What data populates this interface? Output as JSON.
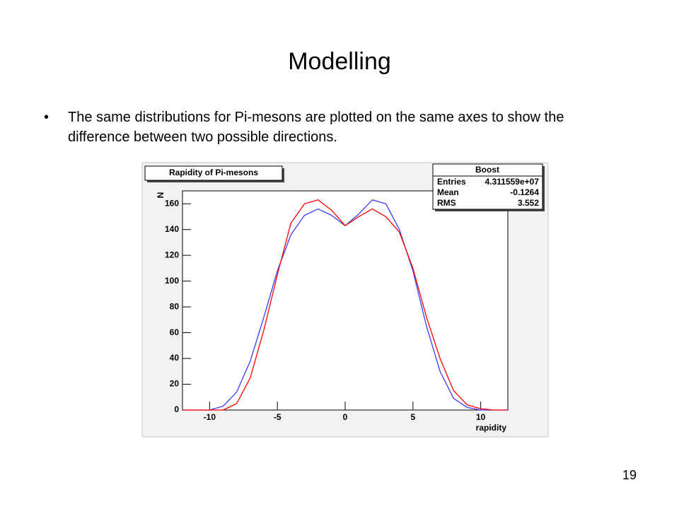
{
  "slide": {
    "title": "Modelling",
    "bullet": "The same distributions for Pi-mesons are plotted on the same axes to show the difference between two possible directions.",
    "page_number": "19"
  },
  "chart_data": {
    "type": "line",
    "title": "Rapidity of Pi-mesons",
    "xlabel": "rapidity",
    "ylabel": "N",
    "x": [
      -12,
      -11,
      -10,
      -9,
      -8,
      -7,
      -6,
      -5,
      -4,
      -3,
      -2,
      -1,
      0,
      1,
      2,
      3,
      4,
      5,
      6,
      7,
      8,
      9,
      10,
      11,
      12
    ],
    "series": [
      {
        "color": "#3b3bff",
        "values": [
          0,
          0,
          0,
          3,
          14,
          38,
          72,
          108,
          136,
          151,
          156,
          151,
          143,
          152,
          163,
          160,
          140,
          108,
          65,
          30,
          9,
          2,
          0,
          0,
          0
        ]
      },
      {
        "color": "#ff0000",
        "values": [
          0,
          0,
          0,
          0,
          5,
          25,
          62,
          105,
          145,
          160,
          163,
          155,
          143,
          150,
          156,
          150,
          138,
          110,
          72,
          40,
          15,
          4,
          1,
          0,
          0
        ]
      }
    ],
    "xlim": [
      -12,
      12
    ],
    "ylim": [
      0,
      170
    ],
    "xticks": [
      -10,
      -5,
      0,
      5,
      10
    ],
    "yticks": [
      0,
      20,
      40,
      60,
      80,
      100,
      120,
      140,
      160
    ],
    "stats": {
      "title": "Boost",
      "rows": [
        [
          "Entries",
          "4.311559e+07"
        ],
        [
          "Mean",
          "-0.1264"
        ],
        [
          "RMS",
          "3.552"
        ]
      ]
    }
  }
}
